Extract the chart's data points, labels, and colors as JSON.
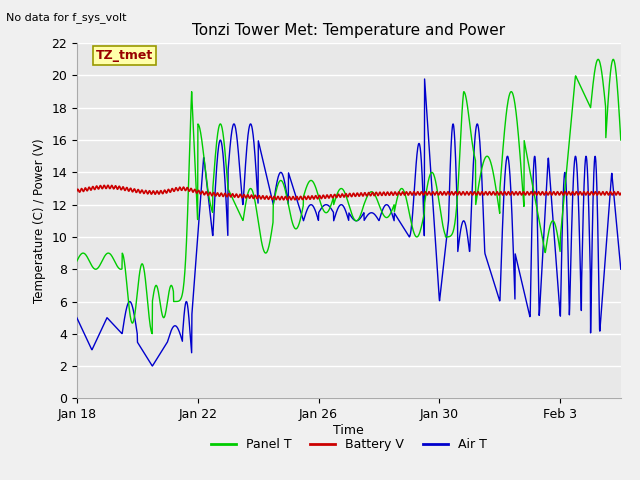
{
  "title": "Tonzi Tower Met: Temperature and Power",
  "top_left_text": "No data for f_sys_volt",
  "annotation_label": "TZ_tmet",
  "xlabel": "Time",
  "ylabel": "Temperature (C) / Power (V)",
  "xlim_days": [
    0,
    18
  ],
  "ylim": [
    0,
    22
  ],
  "yticks": [
    0,
    2,
    4,
    6,
    8,
    10,
    12,
    14,
    16,
    18,
    20,
    22
  ],
  "xtick_labels": [
    "Jan 18",
    "Jan 22",
    "Jan 26",
    "Jan 30",
    "Feb 3"
  ],
  "xtick_positions": [
    0,
    4,
    8,
    12,
    16
  ],
  "fig_bg_color": "#f0f0f0",
  "plot_bg_color": "#e8e8e8",
  "grid_color": "#ffffff",
  "colors": {
    "panel_t": "#00cc00",
    "battery_v": "#cc0000",
    "air_t": "#0000cc"
  },
  "legend_labels": [
    "Panel T",
    "Battery V",
    "Air T"
  ]
}
